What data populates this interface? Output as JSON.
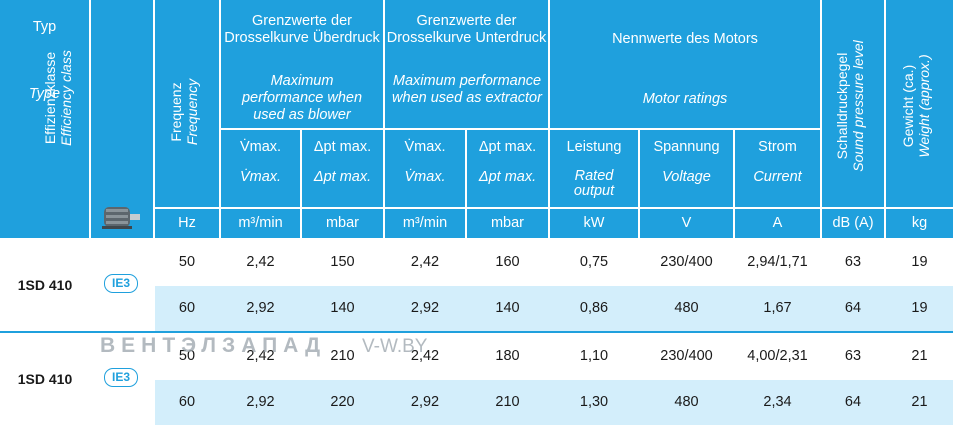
{
  "header": {
    "typ_de": "Typ",
    "typ_en": "Type",
    "effizienz_de": "Effizienzklasse",
    "effizienz_en": "Efficiency class",
    "frequenz_de": "Frequenz",
    "frequenz_en": "Frequency",
    "ueberdruck_title_de": "Grenzwerte der Drosselkurve Überdruck",
    "ueberdruck_title_en": "Maximum performance when used as blower",
    "unterdruck_title_de": "Grenzwerte der Drosselkurve Unterdruck",
    "unterdruck_title_en": "Maximum performance when used as extractor",
    "motor_title_de": "Nennwerte des Motors",
    "motor_title_en": "Motor ratings",
    "vmax_de": "V̇max.",
    "vmax_en": "V̇max.",
    "dp_de": "Δpt max.",
    "dp_en": "Δpt max.",
    "leistung_de": "Leistung",
    "leistung_en": "Rated output",
    "spannung_de": "Spannung",
    "spannung_en": "Voltage",
    "strom_de": "Strom",
    "strom_en": "Current",
    "schall_de": "Schalldruckpegel",
    "schall_en": "Sound pressure level",
    "gewicht_de": "Gewicht (ca.)",
    "gewicht_en": "Weight (approx.)"
  },
  "units": [
    "Hz",
    "m³/min",
    "mbar",
    "m³/min",
    "mbar",
    "kW",
    "V",
    "A",
    "dB (A)",
    "kg"
  ],
  "groups": [
    {
      "type": "1SD 410",
      "badge": "IE3",
      "rows": [
        [
          "50",
          "2,42",
          "150",
          "2,42",
          "160",
          "0,75",
          "230/400",
          "2,94/1,71",
          "63",
          "19"
        ],
        [
          "60",
          "2,92",
          "140",
          "2,92",
          "140",
          "0,86",
          "480",
          "1,67",
          "64",
          "19"
        ]
      ]
    },
    {
      "type": "1SD 410",
      "badge": "IE3",
      "rows": [
        [
          "50",
          "2,42",
          "210",
          "2,42",
          "180",
          "1,10",
          "230/400",
          "4,00/2,31",
          "63",
          "21"
        ],
        [
          "60",
          "2,92",
          "220",
          "2,92",
          "210",
          "1,30",
          "480",
          "2,34",
          "64",
          "21"
        ]
      ]
    }
  ],
  "watermark": {
    "brand": "ВЕНТЭЛЗАПАД",
    "site": "V-W.BY"
  },
  "colors": {
    "header_bg": "#1fa0dd",
    "row_light": "#d3eefb"
  }
}
